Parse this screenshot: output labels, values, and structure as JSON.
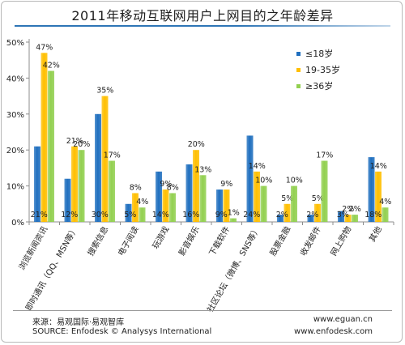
{
  "chart_data": {
    "type": "bar",
    "title": "2011年移动互联网用户上网目的之年龄差异",
    "categories": [
      "浏览新闻资讯",
      "即时通讯（QQ、MSN等）",
      "搜索信息",
      "电子阅读",
      "玩游戏",
      "影音娱乐",
      "下载软件",
      "社区论坛（微博、SNS等）",
      "股票金融",
      "收发邮件",
      "网上购物",
      "其他"
    ],
    "series": [
      {
        "name": "≤18岁",
        "color": "#1f6fbf",
        "values": [
          21,
          12,
          30,
          5,
          14,
          16,
          9,
          24,
          2,
          2,
          3,
          18
        ]
      },
      {
        "name": "19-35岁",
        "color": "#ffbf00",
        "values": [
          47,
          21,
          35,
          8,
          9,
          20,
          9,
          14,
          5,
          5,
          2,
          14
        ]
      },
      {
        "name": "≥36岁",
        "color": "#92d050",
        "values": [
          42,
          20,
          17,
          4,
          8,
          13,
          1,
          10,
          10,
          17,
          2,
          4
        ]
      }
    ],
    "bottom_labels": [
      "21%",
      "12%",
      "30%",
      "5%",
      "14%",
      "16%",
      "9%",
      "24%",
      "2%",
      "2%",
      "3%",
      "18%"
    ],
    "yticks": [
      "0%",
      "10%",
      "20%",
      "30%",
      "40%",
      "50%"
    ],
    "ylim": [
      0,
      50
    ],
    "grid": false,
    "legend_position": "top-right"
  },
  "footer": {
    "source_cn": "来源：易观国际·易观智库",
    "source_en": "SOURCE: Enfodesk © Analysys International",
    "url1": "www.eguan.cn",
    "url2": "www.enfodesk.com"
  }
}
